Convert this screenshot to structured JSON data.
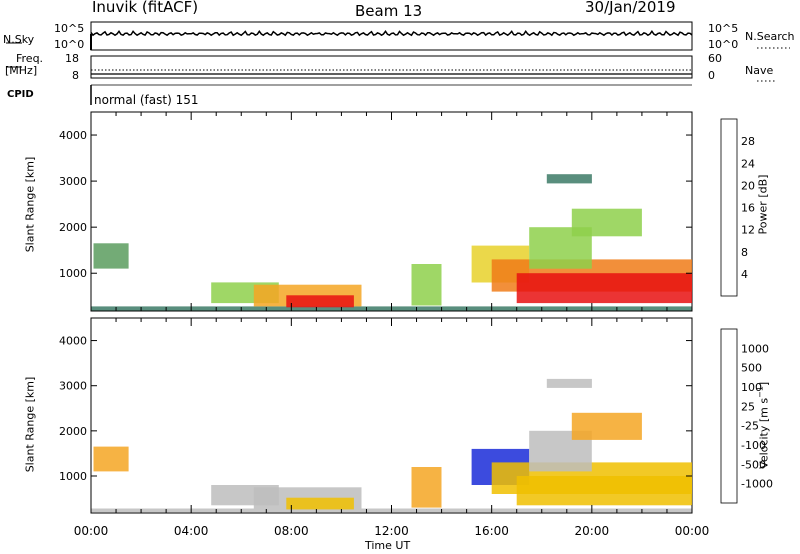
{
  "header": {
    "station": "Inuvik (fitACF)",
    "beam": "Beam 13",
    "date": "30/Jan/2019"
  },
  "top_panels": {
    "nsky_label": "N.Sky",
    "nsky_ticks": [
      "10^5",
      "10^0"
    ],
    "nsearch_label": "N.Search",
    "nsearch_ticks": [
      "10^5",
      "10^0"
    ],
    "freq_label": "Freq.",
    "freq_unit": "[MHz]",
    "freq_ticks": [
      "18",
      "8"
    ],
    "nave_label": "Nave",
    "nave_ticks": [
      "60",
      "0"
    ],
    "cpid_label": "CPID",
    "cpid_value": "normal (fast) 151"
  },
  "colors": {
    "power": [
      "#1a2cd8",
      "#2f4fa0",
      "#3c7a66",
      "#5a9c5e",
      "#8ed04b",
      "#e8d12a",
      "#f5a623",
      "#f07b18",
      "#ee3a16",
      "#e81010"
    ],
    "velocity": [
      "#e81010",
      "#ee4a16",
      "#f57b18",
      "#f5a623",
      "#f0c000",
      "#bdbdbd",
      "#8ed04b",
      "#3c7a66",
      "#2f5fa8",
      "#1a2cd8"
    ]
  },
  "chart_data": [
    {
      "type": "heatmap",
      "title": "Power",
      "ylabel": "Slant Range [km]",
      "xlabel": "Time UT",
      "x_ticks": [
        "00:00",
        "04:00",
        "08:00",
        "12:00",
        "16:00",
        "20:00",
        "00:00"
      ],
      "x_range_hours": [
        0,
        24
      ],
      "y_ticks": [
        1000,
        2000,
        3000,
        4000
      ],
      "y_range_km": [
        180,
        4500
      ],
      "colorbar": {
        "label": "Power [dB]",
        "ticks": [
          "4",
          "8",
          "12",
          "16",
          "20",
          "24",
          "28"
        ],
        "range": [
          0,
          30
        ]
      },
      "regions": [
        {
          "t0": 0.0,
          "t1": 24.0,
          "r0": 190,
          "r1": 280,
          "value": 8
        },
        {
          "t0": 0.1,
          "t1": 1.5,
          "r0": 1100,
          "r1": 1650,
          "value": 10
        },
        {
          "t0": 4.8,
          "t1": 7.5,
          "r0": 350,
          "r1": 800,
          "value": 14
        },
        {
          "t0": 6.5,
          "t1": 10.8,
          "r0": 280,
          "r1": 750,
          "value": 20
        },
        {
          "t0": 7.8,
          "t1": 10.5,
          "r0": 260,
          "r1": 520,
          "value": 28
        },
        {
          "t0": 12.8,
          "t1": 14.0,
          "r0": 300,
          "r1": 1200,
          "value": 12
        },
        {
          "t0": 15.2,
          "t1": 17.5,
          "r0": 800,
          "r1": 1600,
          "value": 16
        },
        {
          "t0": 16.0,
          "t1": 24.0,
          "r0": 600,
          "r1": 1300,
          "value": 22
        },
        {
          "t0": 17.0,
          "t1": 24.0,
          "r0": 350,
          "r1": 1000,
          "value": 28
        },
        {
          "t0": 17.5,
          "t1": 20.0,
          "r0": 1100,
          "r1": 2000,
          "value": 12
        },
        {
          "t0": 18.2,
          "t1": 20.0,
          "r0": 2950,
          "r1": 3150,
          "value": 8
        },
        {
          "t0": 19.2,
          "t1": 22.0,
          "r0": 1800,
          "r1": 2400,
          "value": 14
        }
      ]
    },
    {
      "type": "heatmap",
      "title": "Velocity",
      "ylabel": "Slant Range [km]",
      "xlabel": "Time UT",
      "x_ticks": [
        "00:00",
        "04:00",
        "08:00",
        "12:00",
        "16:00",
        "20:00",
        "00:00"
      ],
      "x_range_hours": [
        0,
        24
      ],
      "y_ticks": [
        1000,
        2000,
        3000,
        4000
      ],
      "y_range_km": [
        180,
        4500
      ],
      "colorbar": {
        "label": "Velocity [m s^-1]",
        "ticks": [
          "1000",
          "500",
          "100",
          "25",
          "-25",
          "-100",
          "-500",
          "-1000"
        ],
        "range": [
          -1000,
          1000
        ]
      },
      "regions": [
        {
          "t0": 0.0,
          "t1": 24.0,
          "r0": 190,
          "r1": 280,
          "value": 0
        },
        {
          "t0": 0.1,
          "t1": 1.5,
          "r0": 1100,
          "r1": 1650,
          "value": -300
        },
        {
          "t0": 4.8,
          "t1": 7.5,
          "r0": 350,
          "r1": 800,
          "value": 150
        },
        {
          "t0": 6.5,
          "t1": 10.8,
          "r0": 280,
          "r1": 750,
          "value": 80
        },
        {
          "t0": 7.8,
          "t1": 10.5,
          "r0": 260,
          "r1": 520,
          "value": -120
        },
        {
          "t0": 12.8,
          "t1": 14.0,
          "r0": 300,
          "r1": 1200,
          "value": -300
        },
        {
          "t0": 15.2,
          "t1": 17.5,
          "r0": 800,
          "r1": 1600,
          "value": 900
        },
        {
          "t0": 16.0,
          "t1": 24.0,
          "r0": 600,
          "r1": 1300,
          "value": -150
        },
        {
          "t0": 17.0,
          "t1": 24.0,
          "r0": 350,
          "r1": 1000,
          "value": -200
        },
        {
          "t0": 17.5,
          "t1": 20.0,
          "r0": 1100,
          "r1": 2000,
          "value": 0
        },
        {
          "t0": 18.2,
          "t1": 20.0,
          "r0": 2950,
          "r1": 3150,
          "value": 0
        },
        {
          "t0": 19.2,
          "t1": 22.0,
          "r0": 1800,
          "r1": 2400,
          "value": -400
        }
      ]
    }
  ]
}
